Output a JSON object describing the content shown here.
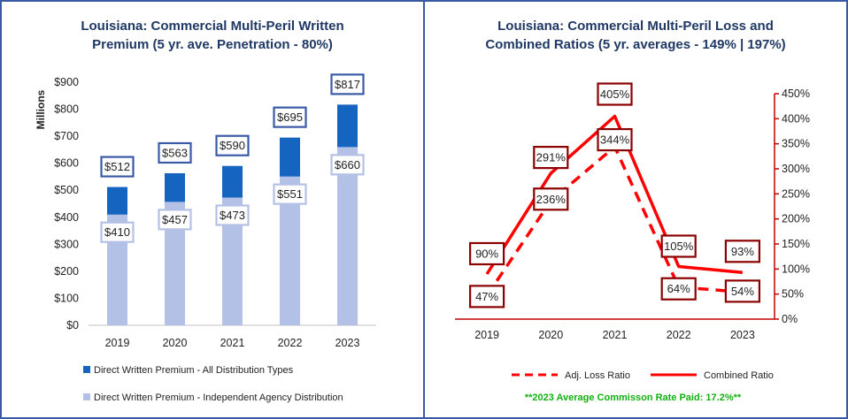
{
  "chart_data": [
    {
      "type": "bar",
      "title_line1": "Louisiana: Commercial Multi-Peril Written",
      "title_line2": "Premium (5 yr. ave. Penetration - 80%)",
      "ylabel": "Millions",
      "ylim": [
        0,
        900
      ],
      "y_ticks": [
        "$0",
        "$100",
        "$200",
        "$300",
        "$400",
        "$500",
        "$600",
        "$700",
        "$800",
        "$900"
      ],
      "categories": [
        "2019",
        "2020",
        "2021",
        "2022",
        "2023"
      ],
      "series": [
        {
          "name": "Direct Written Premium - All Distribution Types",
          "color": "#1565c0",
          "values": [
            512,
            563,
            590,
            695,
            817
          ],
          "labels": [
            "$512",
            "$563",
            "$590",
            "$695",
            "$817"
          ]
        },
        {
          "name": "Direct Written Premium - Independent Agency Distribution",
          "color": "#b4c1e6",
          "values": [
            410,
            457,
            473,
            551,
            660
          ],
          "labels": [
            "$410",
            "$457",
            "$473",
            "$551",
            "$660"
          ]
        }
      ]
    },
    {
      "type": "line",
      "title_line1": "Louisiana: Commercial Multi-Peril Loss and",
      "title_line2": "Combined Ratios (5 yr. averages - 149% | 197%)",
      "ylim": [
        0,
        450
      ],
      "y_ticks": [
        "0%",
        "50%",
        "100%",
        "150%",
        "200%",
        "250%",
        "300%",
        "350%",
        "400%",
        "450%"
      ],
      "categories": [
        "2019",
        "2020",
        "2021",
        "2022",
        "2023"
      ],
      "series": [
        {
          "name": "Adj. Loss Ratio",
          "style": "dashed",
          "color": "#ff0000",
          "values": [
            47,
            236,
            344,
            64,
            54
          ],
          "labels": [
            "47%",
            "236%",
            "344%",
            "64%",
            "54%"
          ]
        },
        {
          "name": "Combined Ratio",
          "style": "solid",
          "color": "#ff0000",
          "values": [
            90,
            291,
            405,
            105,
            93
          ],
          "labels": [
            "90%",
            "291%",
            "405%",
            "105%",
            "93%"
          ]
        }
      ],
      "note": "**2023 Average Commisson Rate Paid: 17.2%**"
    }
  ]
}
